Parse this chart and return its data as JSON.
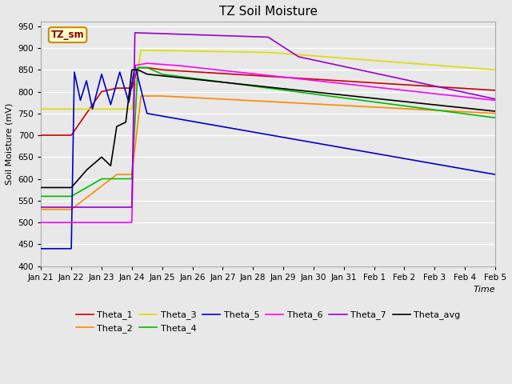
{
  "title": "TZ Soil Moisture",
  "xlabel": "Time",
  "ylabel": "Soil Moisture (mV)",
  "ylim": [
    400,
    960
  ],
  "yticks": [
    400,
    450,
    500,
    550,
    600,
    650,
    700,
    750,
    800,
    850,
    900,
    950
  ],
  "plot_bg_color": "#e8e8e8",
  "grid_color": "#ffffff",
  "legend_label": "TZ_sm",
  "series_colors": {
    "Theta_1": "#cc0000",
    "Theta_2": "#ff8800",
    "Theta_3": "#dddd00",
    "Theta_4": "#00bb00",
    "Theta_5": "#0000cc",
    "Theta_6": "#ff00ff",
    "Theta_7": "#9900cc",
    "Theta_avg": "#000000"
  },
  "tick_labels": [
    "Jan 21",
    "Jan 22",
    "Jan 23",
    "Jan 24",
    "Jan 25",
    "Jan 26",
    "Jan 27",
    "Jan 28",
    "Jan 29",
    "Jan 30",
    "Jan 31",
    "Feb 1",
    "Feb 2",
    "Feb 3",
    "Feb 4",
    "Feb 5"
  ]
}
